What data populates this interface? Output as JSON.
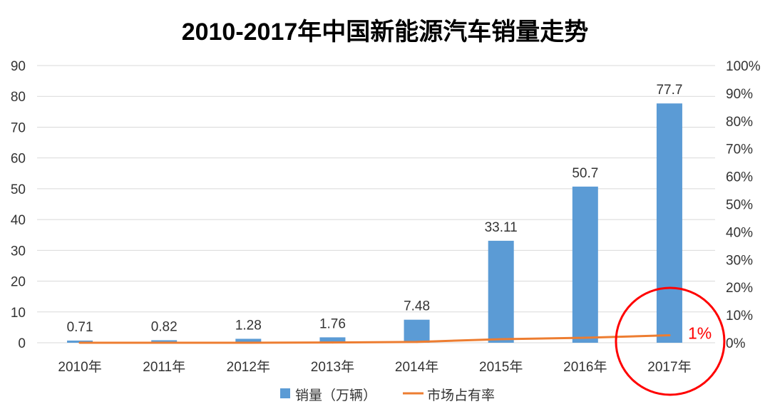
{
  "chart_data": {
    "type": "bar",
    "title": "2010-2017年中国新能源汽车销量走势",
    "categories": [
      "2010年",
      "2011年",
      "2012年",
      "2013年",
      "2014年",
      "2015年",
      "2016年",
      "2017年"
    ],
    "series": [
      {
        "name": "销量（万辆）",
        "type": "bar",
        "axis": "left",
        "color": "#5B9BD5",
        "values": [
          0.71,
          0.82,
          1.28,
          1.76,
          7.48,
          33.11,
          50.7,
          77.7
        ],
        "data_labels": [
          "0.71",
          "0.82",
          "1.28",
          "1.76",
          "7.48",
          "33.11",
          "50.7",
          "77.7"
        ]
      },
      {
        "name": "市场占有率",
        "type": "line",
        "axis": "right",
        "color": "#ED7D31",
        "values": [
          0.0,
          0.0,
          0.0,
          0.1,
          0.3,
          1.3,
          1.8,
          2.7
        ]
      }
    ],
    "ylim": [
      0,
      90
    ],
    "yticks": [
      "0",
      "10",
      "20",
      "30",
      "40",
      "50",
      "60",
      "70",
      "80",
      "90"
    ],
    "y2lim": [
      0,
      100
    ],
    "y2ticks": [
      "0%",
      "10%",
      "20%",
      "30%",
      "40%",
      "50%",
      "60%",
      "70%",
      "80%",
      "90%",
      "100%"
    ],
    "grid": true,
    "legend": "bottom",
    "annotations": [
      {
        "text": "1%",
        "color": "#FF0000",
        "x": "2017年"
      }
    ]
  }
}
